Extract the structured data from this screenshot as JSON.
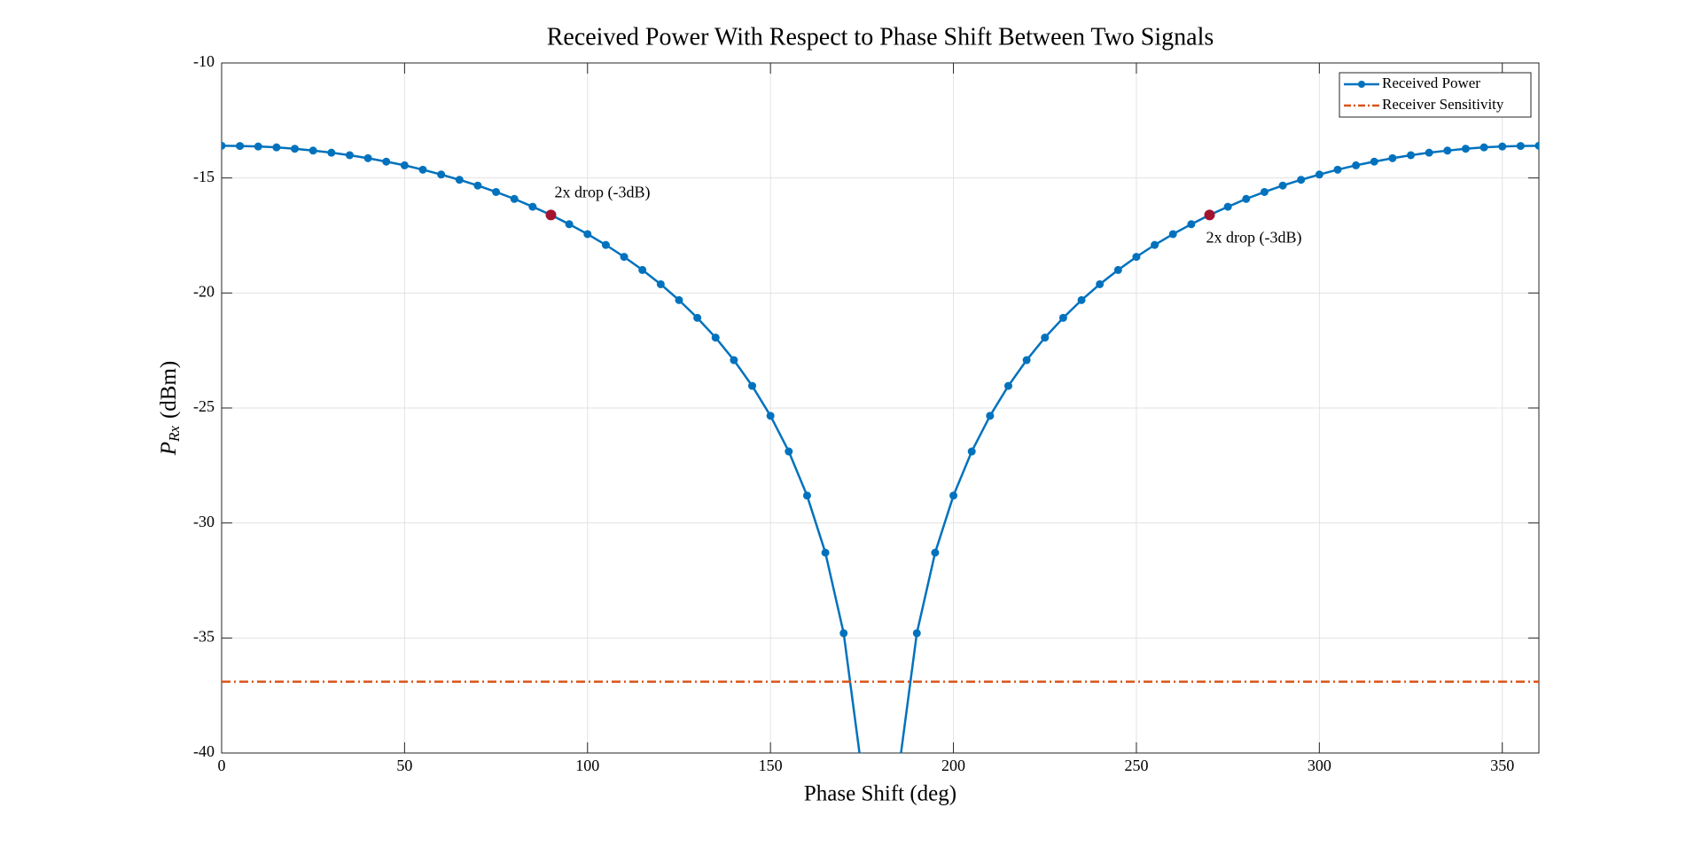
{
  "chart_data": {
    "type": "line",
    "title": "Received Power With Respect to Phase Shift Between Two Signals",
    "xlabel": "Phase Shift (deg)",
    "ylabel": {
      "symbol": "P",
      "subscript": "Rx",
      "unit": "(dBm)"
    },
    "x": [
      0,
      5,
      10,
      15,
      20,
      25,
      30,
      35,
      40,
      45,
      50,
      55,
      60,
      65,
      70,
      75,
      80,
      85,
      90,
      95,
      100,
      105,
      110,
      115,
      120,
      125,
      130,
      135,
      140,
      145,
      150,
      155,
      160,
      165,
      170,
      175,
      180,
      185,
      190,
      195,
      200,
      205,
      210,
      215,
      220,
      225,
      230,
      235,
      240,
      245,
      250,
      255,
      260,
      265,
      270,
      275,
      280,
      285,
      290,
      295,
      300,
      305,
      310,
      315,
      320,
      325,
      330,
      335,
      340,
      345,
      350,
      355,
      360
    ],
    "series": [
      {
        "name": "Received Power",
        "color": "#0072bd",
        "marker": true,
        "values": [
          -13.6,
          -13.61,
          -13.63,
          -13.67,
          -13.73,
          -13.81,
          -13.9,
          -14.01,
          -14.14,
          -14.29,
          -14.45,
          -14.64,
          -14.85,
          -15.08,
          -15.33,
          -15.61,
          -15.91,
          -16.25,
          -16.61,
          -17.01,
          -17.44,
          -17.91,
          -18.43,
          -19.0,
          -19.62,
          -20.31,
          -21.08,
          -21.94,
          -22.92,
          -24.04,
          -25.34,
          -26.89,
          -28.81,
          -31.29,
          -34.79,
          -40.81,
          null,
          -40.81,
          -34.79,
          -31.29,
          -28.81,
          -26.89,
          -25.34,
          -24.04,
          -22.92,
          -21.94,
          -21.08,
          -20.31,
          -19.62,
          -19.0,
          -18.43,
          -17.91,
          -17.44,
          -17.01,
          -16.61,
          -16.25,
          -15.91,
          -15.61,
          -15.33,
          -15.08,
          -14.85,
          -14.64,
          -14.45,
          -14.29,
          -14.14,
          -14.01,
          -13.9,
          -13.81,
          -13.73,
          -13.67,
          -13.63,
          -13.61,
          -13.6
        ]
      },
      {
        "name": "Receiver Sensitivity",
        "color": "#d95319",
        "dash": "dashdot",
        "constant": -36.9
      }
    ],
    "annotations": [
      {
        "text": "2x drop (-3dB)",
        "x": 90,
        "y": -16.61,
        "color": "#a2142f"
      },
      {
        "text": "2x drop (-3dB)",
        "x": 270,
        "y": -16.61,
        "color": "#a2142f"
      }
    ],
    "xlim": [
      0,
      360
    ],
    "xticks": [
      0,
      50,
      100,
      150,
      200,
      250,
      300,
      350
    ],
    "ylim": [
      -40,
      -10
    ],
    "yticks": [
      -40,
      -35,
      -30,
      -25,
      -20,
      -15,
      -10
    ],
    "grid": true,
    "legend": "top-right"
  }
}
